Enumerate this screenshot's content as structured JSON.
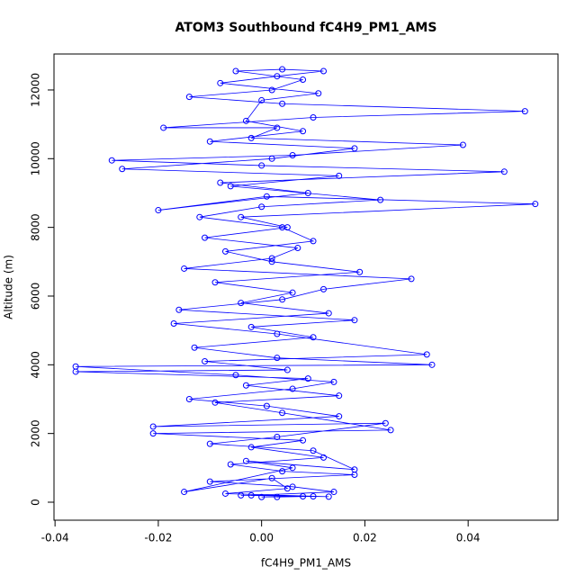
{
  "chart_data": {
    "type": "scatter",
    "title": "ATOM3 Southbound fC4H9_PM1_AMS",
    "x_label": "fC4H9_PM1_AMS",
    "y_label": "Altitude (m)",
    "xlim": [
      -0.0402,
      0.0574
    ],
    "ylim": [
      -524,
      13047
    ],
    "xticks": [
      -0.04,
      -0.02,
      {
        "value": 0,
        "label": "0.00"
      },
      0.02,
      0.04
    ],
    "yticks": [
      0,
      2000,
      4000,
      6000,
      8000,
      10000,
      12000
    ],
    "connect": true,
    "series": [
      {
        "color": "#0000ff",
        "x": [
          0.0,
          0.008,
          -0.004,
          0.013,
          -0.007,
          0.005,
          0.002,
          -0.015,
          0.006,
          -0.003,
          0.018,
          0.01,
          -0.01,
          0.003,
          0.024,
          -0.021,
          0.015,
          0.001,
          -0.014,
          0.006,
          0.014,
          -0.005,
          -0.036,
          0.033,
          0.003,
          -0.013,
          0.01,
          -0.002,
          0.018,
          -0.016,
          0.004,
          0.012,
          0.029,
          -0.015,
          0.002,
          0.007,
          -0.011,
          0.005,
          -0.004,
          0.053,
          0.001,
          -0.02,
          0.009,
          -0.008,
          0.047,
          0.0,
          -0.029,
          0.006,
          0.039,
          -0.002,
          0.003,
          -0.019,
          0.01,
          0.051,
          0.004,
          -0.014,
          0.002,
          0.008,
          -0.005,
          0.004,
          0.012,
          0.003,
          -0.008,
          0.011,
          0.0,
          -0.003,
          0.008,
          -0.01,
          0.018,
          0.002,
          -0.027,
          0.015,
          -0.006,
          0.023,
          0.0,
          -0.012,
          0.004,
          0.01,
          -0.007,
          0.002,
          0.019,
          -0.009,
          0.006,
          -0.004,
          0.013,
          -0.017,
          0.003,
          0.032,
          -0.011,
          0.005,
          -0.036,
          0.009,
          -0.003,
          0.015,
          -0.009,
          0.004,
          0.025,
          -0.021,
          0.008,
          -0.002,
          0.012,
          -0.006,
          0.004,
          0.018,
          -0.01,
          0.006,
          0.014,
          -0.002,
          0.01,
          0.003
        ],
        "values": [
          150,
          170,
          200,
          160,
          250,
          400,
          700,
          300,
          1000,
          1200,
          950,
          1500,
          1700,
          1900,
          2300,
          2200,
          2500,
          2800,
          3000,
          3300,
          3500,
          3700,
          3950,
          4000,
          4200,
          4500,
          4800,
          5100,
          5300,
          5600,
          5900,
          6200,
          6500,
          6800,
          7100,
          7400,
          7700,
          8000,
          8300,
          8680,
          8900,
          8500,
          9000,
          9300,
          9620,
          9800,
          9950,
          10100,
          10400,
          10600,
          10900,
          10900,
          11200,
          11380,
          11600,
          11800,
          12000,
          12300,
          12550,
          12600,
          12550,
          12400,
          12200,
          11900,
          11700,
          11100,
          10800,
          10500,
          10300,
          10000,
          9700,
          9500,
          9200,
          8800,
          8600,
          8300,
          8000,
          7600,
          7300,
          7000,
          6700,
          6400,
          6100,
          5800,
          5500,
          5200,
          4900,
          4300,
          4100,
          3850,
          3800,
          3600,
          3400,
          3100,
          2900,
          2600,
          2100,
          2000,
          1800,
          1600,
          1300,
          1100,
          900,
          800,
          600,
          450,
          300,
          200,
          170,
          150
        ]
      }
    ]
  }
}
